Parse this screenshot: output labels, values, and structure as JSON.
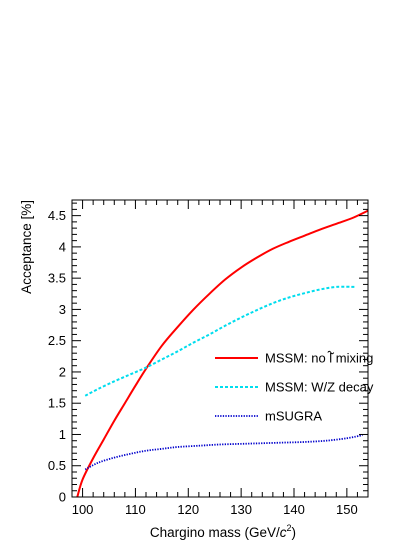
{
  "chart_data": {
    "type": "line",
    "title": "",
    "xlabel_parts": {
      "prefix": "Chargino mass (GeV/",
      "italic": "c",
      "sup": "2",
      "suffix": ")"
    },
    "ylabel": "Acceptance [%]",
    "xlim": [
      98,
      154
    ],
    "ylim": [
      0,
      4.75
    ],
    "x_ticks": [
      100,
      110,
      120,
      130,
      140,
      150
    ],
    "x_tick_labels": [
      "100",
      "110",
      "120",
      "130",
      "140",
      "150"
    ],
    "y_ticks": [
      0,
      0.5,
      1,
      1.5,
      2,
      2.5,
      3,
      3.5,
      4,
      4.5
    ],
    "y_tick_labels": [
      "0",
      "0.5",
      "1",
      "1.5",
      "2",
      "2.5",
      "3",
      "3.5",
      "4",
      "4.5"
    ],
    "grid": false,
    "legend_position": "center-right",
    "series": [
      {
        "name_parts": {
          "prefix": "MSSM: no ",
          "tilde_char": "l",
          "suffix": " mixing"
        },
        "color": "#ff0000",
        "style": "solid",
        "x": [
          99,
          100,
          102,
          104,
          106,
          108,
          110,
          112,
          115,
          118,
          121,
          124,
          127,
          130,
          133,
          136,
          139,
          142,
          145,
          148,
          151,
          154
        ],
        "y": [
          0,
          0.28,
          0.62,
          0.92,
          1.22,
          1.5,
          1.78,
          2.05,
          2.42,
          2.72,
          3.0,
          3.25,
          3.48,
          3.67,
          3.83,
          3.97,
          4.08,
          4.18,
          4.28,
          4.37,
          4.46,
          4.58
        ]
      },
      {
        "name": "MSSM: W/Z decay",
        "color": "#00ddee",
        "style": "dashed",
        "x": [
          100.5,
          103,
          106,
          109,
          112,
          115,
          118,
          121,
          124,
          127,
          130,
          133,
          136,
          139,
          142,
          145,
          148,
          151.5
        ],
        "y": [
          1.62,
          1.73,
          1.85,
          1.96,
          2.07,
          2.2,
          2.33,
          2.47,
          2.6,
          2.74,
          2.87,
          2.99,
          3.1,
          3.19,
          3.26,
          3.32,
          3.36,
          3.36
        ]
      },
      {
        "name": "mSUGRA",
        "color": "#0000cc",
        "style": "dotted",
        "x": [
          100.5,
          103,
          106,
          109,
          112,
          115,
          118,
          122,
          126,
          130,
          134,
          138,
          142,
          146,
          150,
          153
        ],
        "y": [
          0.44,
          0.55,
          0.63,
          0.69,
          0.74,
          0.77,
          0.8,
          0.82,
          0.84,
          0.85,
          0.86,
          0.87,
          0.88,
          0.9,
          0.94,
          0.99
        ]
      }
    ]
  }
}
